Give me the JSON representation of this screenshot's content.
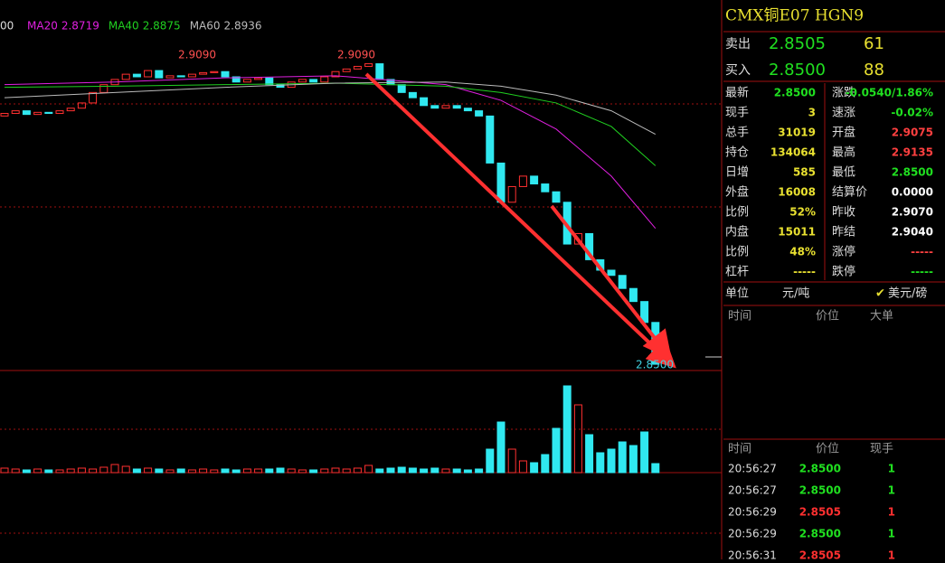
{
  "chart_data": {
    "type": "candlestick",
    "open": [
      2.8975,
      2.898,
      2.8985,
      2.8978,
      2.8982,
      2.898,
      2.8985,
      2.899,
      2.9,
      2.902,
      2.9035,
      2.9045,
      2.9055,
      2.905,
      2.9062,
      2.9048,
      2.9052,
      2.905,
      2.9055,
      2.9058,
      2.906,
      2.905,
      2.904,
      2.9045,
      2.9048,
      2.9035,
      2.903,
      2.904,
      2.9045,
      2.904,
      2.905,
      2.906,
      2.9065,
      2.907,
      2.9075,
      2.9045,
      2.9035,
      2.902,
      2.901,
      2.8995,
      2.899,
      2.8995,
      2.899,
      2.8985,
      2.8975,
      2.8885,
      2.881,
      2.884,
      2.886,
      2.8845,
      2.883,
      2.881,
      2.873,
      2.875,
      2.87,
      2.868,
      2.867,
      2.8645,
      2.862,
      2.858
    ],
    "close": [
      2.898,
      2.8985,
      2.8978,
      2.8982,
      2.898,
      2.8985,
      2.899,
      2.9,
      2.902,
      2.9035,
      2.9045,
      2.9055,
      2.905,
      2.9062,
      2.9048,
      2.9052,
      2.905,
      2.9055,
      2.9058,
      2.906,
      2.905,
      2.904,
      2.9045,
      2.9048,
      2.9035,
      2.903,
      2.904,
      2.9045,
      2.904,
      2.905,
      2.906,
      2.9065,
      2.907,
      2.9075,
      2.9045,
      2.9035,
      2.902,
      2.901,
      2.8995,
      2.899,
      2.8995,
      2.899,
      2.8985,
      2.8975,
      2.8885,
      2.881,
      2.884,
      2.886,
      2.8845,
      2.883,
      2.881,
      2.873,
      2.875,
      2.87,
      2.868,
      2.867,
      2.8645,
      2.862,
      2.858,
      2.85
    ],
    "ylim": [
      2.8488,
      2.9197
    ],
    "volumes": [
      50,
      40,
      30,
      40,
      30,
      30,
      40,
      50,
      40,
      60,
      90,
      70,
      40,
      50,
      40,
      30,
      40,
      30,
      40,
      30,
      40,
      30,
      40,
      40,
      40,
      50,
      40,
      30,
      30,
      40,
      50,
      40,
      50,
      80,
      40,
      50,
      60,
      50,
      40,
      50,
      40,
      40,
      30,
      40,
      260,
      560,
      260,
      130,
      110,
      200,
      490,
      960,
      750,
      420,
      220,
      260,
      340,
      300,
      450,
      100
    ],
    "volume_lim": [
      0,
      1130
    ],
    "legend_fragment": "00",
    "ma_x": [
      0,
      10,
      20,
      30,
      40,
      45,
      50,
      55,
      59
    ],
    "ma_lines": [
      {
        "name": "MA20",
        "value": 2.8719,
        "color": "#e020e0",
        "points": [
          2.9035,
          2.904,
          2.9048,
          2.9052,
          2.9035,
          2.9005,
          2.895,
          2.886,
          2.876
        ]
      },
      {
        "name": "MA40",
        "value": 2.8875,
        "color": "#20d020",
        "points": [
          2.903,
          2.9032,
          2.9035,
          2.9038,
          2.9032,
          2.902,
          2.9,
          2.8955,
          2.888
        ]
      },
      {
        "name": "MA60",
        "value": 2.8936,
        "color": "#bbbbbb",
        "points": [
          2.901,
          2.902,
          2.903,
          2.9038,
          2.904,
          2.9032,
          2.9015,
          2.8985,
          2.894
        ]
      }
    ],
    "annotations": [
      "2.9090",
      "2.9090",
      "2.8500"
    ]
  },
  "quote_panel": {
    "title": "CMX铜E07  HGN9",
    "sell": {
      "label": "卖出",
      "price": "2.8505",
      "qty": "61"
    },
    "buy": {
      "label": "买入",
      "price": "2.8500",
      "qty": "88"
    },
    "rows": [
      [
        "最新",
        "2.8500",
        "#20e020",
        "涨跌",
        "-0.0540/1.86%",
        "#20e020"
      ],
      [
        "现手",
        "3",
        "#e8e030",
        "速涨",
        "-0.02%",
        "#20e020"
      ],
      [
        "总手",
        "31019",
        "#e8e030",
        "开盘",
        "2.9075",
        "#ff4040"
      ],
      [
        "持仓",
        "134064",
        "#e8e030",
        "最高",
        "2.9135",
        "#ff4040"
      ],
      [
        "日增",
        "585",
        "#e8e030",
        "最低",
        "2.8500",
        "#20e020"
      ],
      [
        "外盘",
        "16008",
        "#e8e030",
        "结算价",
        "0.0000",
        "#ffffff"
      ],
      [
        "比例",
        "52%",
        "#e8e030",
        "昨收",
        "2.9070",
        "#ffffff"
      ],
      [
        "内盘",
        "15011",
        "#e8e030",
        "昨结",
        "2.9040",
        "#ffffff"
      ],
      [
        "比例",
        "48%",
        "#e8e030",
        "涨停",
        "-----",
        "#ff4040"
      ],
      [
        "杠杆",
        "-----",
        "#e8e030",
        "跌停",
        "-----",
        "#20e020"
      ]
    ],
    "unit": {
      "label": "单位",
      "left": "元/吨",
      "right": "美元/磅"
    },
    "big_header": [
      "时间",
      "价位",
      "大单"
    ],
    "trade_header": [
      "时间",
      "价位",
      "现手"
    ],
    "trades": [
      [
        "20:56:27",
        "2.8500",
        "1",
        "#20e020"
      ],
      [
        "20:56:27",
        "2.8500",
        "1",
        "#20e020"
      ],
      [
        "20:56:29",
        "2.8505",
        "1",
        "#ff3030"
      ],
      [
        "20:56:29",
        "2.8500",
        "1",
        "#20e020"
      ],
      [
        "20:56:31",
        "2.8505",
        "1",
        "#ff3030"
      ]
    ]
  }
}
